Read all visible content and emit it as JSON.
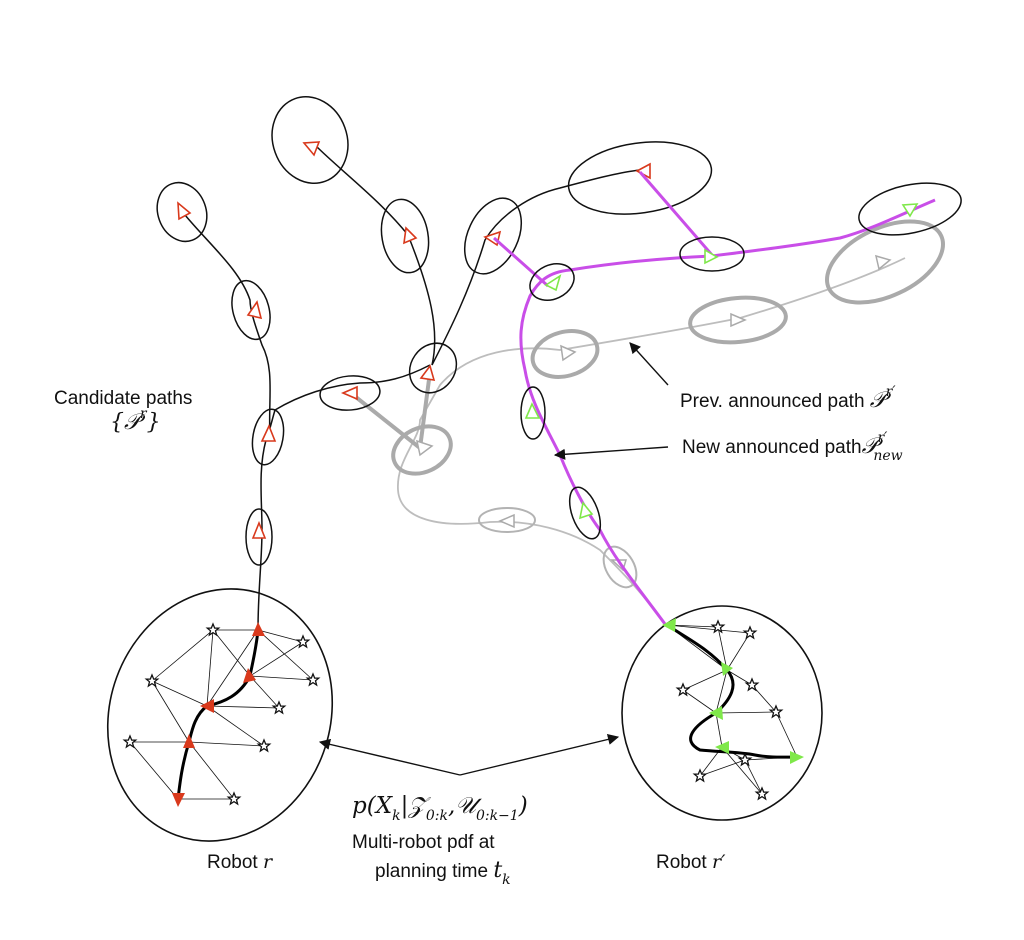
{
  "labels": {
    "candidate_paths": "Candidate paths",
    "candidate_paths_math": "{𝒫",
    "candidate_paths_sup": "r",
    "candidate_paths_close": "}",
    "prev_path": "Prev. announced path",
    "prev_path_math": "𝒫",
    "prev_path_sup": "r′",
    "new_path": "New announced path",
    "new_path_math": "𝒫",
    "new_path_sup": "r′",
    "new_path_sub": "new",
    "pdf_formula": "p(X",
    "pdf_formula_k": "k",
    "pdf_formula_rest1": "|𝒵",
    "pdf_formula_sub1": "0:k",
    "pdf_formula_rest2": ",𝒰",
    "pdf_formula_sub2": "0:k−1",
    "pdf_formula_close": ")",
    "pdf_caption_line1": "Multi-robot pdf at",
    "pdf_caption_line2": "planning time",
    "pdf_caption_t": "t",
    "pdf_caption_k": "k",
    "robot_r": "Robot",
    "robot_r_math": "r",
    "robot_r2": "Robot",
    "robot_r2_math": "r′"
  },
  "colors": {
    "candidate_path": "#111111",
    "candidate_arrow": "#d9391c",
    "new_path": "#c94ee8",
    "new_arrow": "#7fe84a",
    "prev_path": "#b8b8b8",
    "prev_ellipse": "#a8a8a8",
    "robot_path": "#000000"
  }
}
